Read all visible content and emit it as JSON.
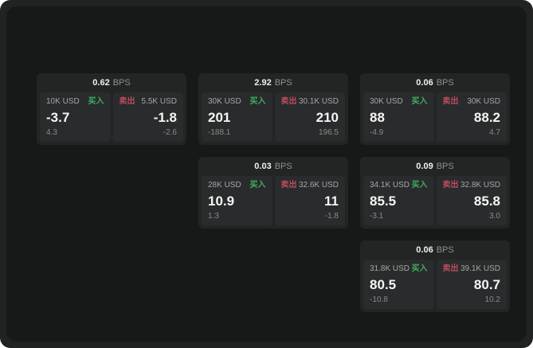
{
  "labels": {
    "bps_suffix": "BPS",
    "buy": "买入",
    "sell": "卖出"
  },
  "colors": {
    "buy": "#3fae63",
    "sell": "#bc4c61",
    "panel": "#171818",
    "card": "#232424",
    "tile": "#2a2b2c"
  },
  "cards": [
    {
      "bps": "0.62",
      "buy": {
        "amount": "10K USD",
        "value": "-3.7",
        "sub": "4.3"
      },
      "sell": {
        "amount": "5.5K USD",
        "value": "-1.8",
        "sub": "-2.6"
      }
    },
    {
      "bps": "2.92",
      "buy": {
        "amount": "30K USD",
        "value": "201",
        "sub": "-188.1"
      },
      "sell": {
        "amount": "30.1K USD",
        "value": "210",
        "sub": "196.5"
      }
    },
    {
      "bps": "0.06",
      "buy": {
        "amount": "30K USD",
        "value": "88",
        "sub": "-4.9"
      },
      "sell": {
        "amount": "30K USD",
        "value": "88.2",
        "sub": "4.7"
      }
    },
    {
      "bps": "0.03",
      "buy": {
        "amount": "28K USD",
        "value": "10.9",
        "sub": "1.3"
      },
      "sell": {
        "amount": "32.6K USD",
        "value": "11",
        "sub": "-1.8"
      }
    },
    {
      "bps": "0.09",
      "buy": {
        "amount": "34.1K USD",
        "value": "85.5",
        "sub": "-3.1"
      },
      "sell": {
        "amount": "32.8K USD",
        "value": "85.8",
        "sub": "3.0"
      }
    },
    {
      "bps": "0.06",
      "buy": {
        "amount": "31.8K USD",
        "value": "80.5",
        "sub": "-10.8"
      },
      "sell": {
        "amount": "39.1K USD",
        "value": "80.7",
        "sub": "10.2"
      }
    }
  ]
}
